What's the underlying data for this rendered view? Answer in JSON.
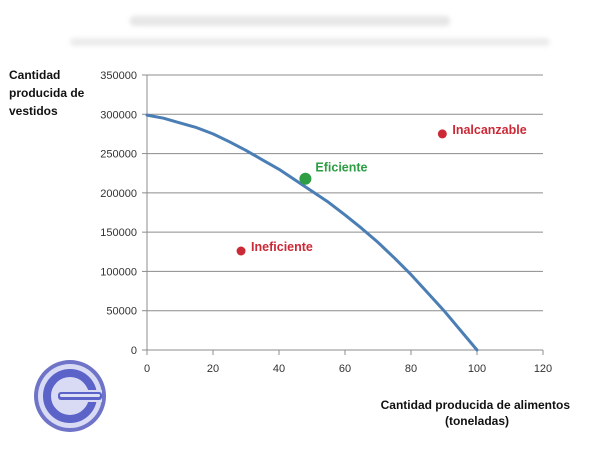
{
  "chart_data": {
    "type": "line",
    "title": "",
    "ylabel": [
      "Cantidad",
      "producida de",
      "vestidos"
    ],
    "xlabel": [
      "Cantidad producida de alimentos",
      "(toneladas)"
    ],
    "xlim": [
      0,
      120
    ],
    "ylim": [
      0,
      350000
    ],
    "x_ticks": [
      "0",
      "20",
      "40",
      "60",
      "80",
      "100",
      "120"
    ],
    "y_ticks": [
      "0",
      "50000",
      "100000",
      "150000",
      "200000",
      "250000",
      "300000",
      "350000"
    ],
    "grid": "horizontal",
    "series": [
      {
        "color": "#4a7eb5",
        "x": [
          0,
          5,
          10,
          15,
          20,
          25,
          30,
          35,
          40,
          45,
          50,
          55,
          60,
          65,
          70,
          75,
          80,
          85,
          90,
          95,
          100
        ],
        "y": [
          299000,
          295000,
          289000,
          283000,
          275000,
          265000,
          254000,
          242000,
          230000,
          216000,
          202000,
          188000,
          172000,
          155000,
          137000,
          117000,
          96000,
          73000,
          50000,
          25000,
          0
        ]
      }
    ],
    "annotations": [
      {
        "label": "Eficiente",
        "x": 48,
        "y": 218000,
        "color": "#2e9e44",
        "size": "large"
      },
      {
        "label": "Ineficiente",
        "x": 28.5,
        "y": 126000,
        "color": "#cc2936",
        "size": "small"
      },
      {
        "label": "Inalcanzable",
        "x": 89.5,
        "y": 275000,
        "color": "#cc2936",
        "size": "small"
      }
    ]
  },
  "logo": {
    "name": "circular-c-logo",
    "color": "#5b63c9"
  }
}
